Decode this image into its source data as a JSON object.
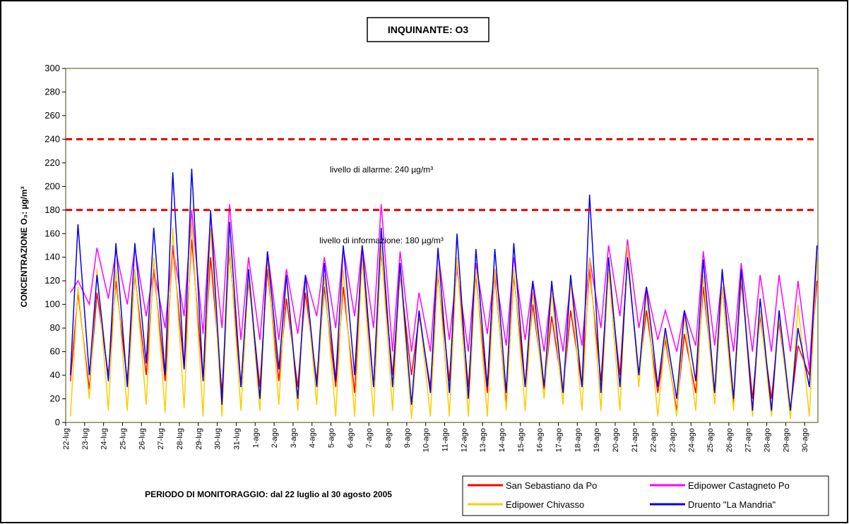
{
  "chart_data": {
    "type": "line",
    "title": "INQUINANTE: O3",
    "subtitle": "PERIODO DI MONITORAGGIO: dal 22 luglio al 30 agosto 2005",
    "y_label": "CONCENTRAZIONE O₃: µg/m³",
    "ylim": [
      0,
      300
    ],
    "yticks": [
      0,
      20,
      40,
      60,
      80,
      100,
      120,
      140,
      160,
      180,
      200,
      220,
      240,
      260,
      280,
      300
    ],
    "xlim": [
      0,
      39.7
    ],
    "xticks": [
      {
        "value": 0,
        "label": "22-lug"
      },
      {
        "value": 1,
        "label": "23-lug"
      },
      {
        "value": 2,
        "label": "24-lug"
      },
      {
        "value": 3,
        "label": "25-lug"
      },
      {
        "value": 4,
        "label": "26-lug"
      },
      {
        "value": 5,
        "label": "27-lug"
      },
      {
        "value": 6,
        "label": "28-lug"
      },
      {
        "value": 7,
        "label": "29-lug"
      },
      {
        "value": 8,
        "label": "30-lug"
      },
      {
        "value": 9,
        "label": "31-lug"
      },
      {
        "value": 10,
        "label": "1-ago"
      },
      {
        "value": 11,
        "label": "2-ago"
      },
      {
        "value": 12,
        "label": "3-ago"
      },
      {
        "value": 13,
        "label": "4-ago"
      },
      {
        "value": 14,
        "label": "5-ago"
      },
      {
        "value": 15,
        "label": "6-ago"
      },
      {
        "value": 16,
        "label": "7-ago"
      },
      {
        "value": 17,
        "label": "8-ago"
      },
      {
        "value": 18,
        "label": "9-ago"
      },
      {
        "value": 19,
        "label": "10-ago"
      },
      {
        "value": 20,
        "label": "11-ago"
      },
      {
        "value": 21,
        "label": "12-ago"
      },
      {
        "value": 22,
        "label": "13-ago"
      },
      {
        "value": 23,
        "label": "14-ago"
      },
      {
        "value": 24,
        "label": "15-ago"
      },
      {
        "value": 25,
        "label": "16-ago"
      },
      {
        "value": 26,
        "label": "17-ago"
      },
      {
        "value": 27,
        "label": "18-ago"
      },
      {
        "value": 28,
        "label": "19-ago"
      },
      {
        "value": 29,
        "label": "20-ago"
      },
      {
        "value": 30,
        "label": "21-ago"
      },
      {
        "value": 31,
        "label": "22-ago"
      },
      {
        "value": 32,
        "label": "23-ago"
      },
      {
        "value": 33,
        "label": "24-ago"
      },
      {
        "value": 34,
        "label": "25-ago"
      },
      {
        "value": 35,
        "label": "26-ago"
      },
      {
        "value": 36,
        "label": "27-ago"
      },
      {
        "value": 37,
        "label": "28-ago"
      },
      {
        "value": 38,
        "label": "29-ago"
      },
      {
        "value": 39,
        "label": "30-ago"
      }
    ],
    "x": [
      0.25,
      0.65,
      1.25,
      1.65,
      2.25,
      2.65,
      3.25,
      3.65,
      4.25,
      4.65,
      5.25,
      5.65,
      6.25,
      6.65,
      7.25,
      7.65,
      8.25,
      8.65,
      9.25,
      9.65,
      10.25,
      10.65,
      11.25,
      11.65,
      12.25,
      12.65,
      13.25,
      13.65,
      14.25,
      14.65,
      15.25,
      15.65,
      16.25,
      16.65,
      17.25,
      17.65,
      18.25,
      18.65,
      19.25,
      19.65,
      20.25,
      20.65,
      21.25,
      21.65,
      22.25,
      22.65,
      23.25,
      23.65,
      24.25,
      24.65,
      25.25,
      25.65,
      26.25,
      26.65,
      27.25,
      27.65,
      28.25,
      28.65,
      29.25,
      29.65,
      30.25,
      30.65,
      31.25,
      31.65,
      32.25,
      32.65,
      33.25,
      33.65,
      34.25,
      34.65,
      35.25,
      35.65,
      36.25,
      36.65,
      37.25,
      37.65,
      38.25,
      38.65,
      39.25,
      39.65
    ],
    "thresholds": [
      {
        "value": 240,
        "label": "livello di allarme: 240 µg/m³",
        "color": "#e00000"
      },
      {
        "value": 180,
        "label": "livello di informazione: 180 µg/m³",
        "color": "#e00000"
      }
    ],
    "legend_position": "bottom-right",
    "series": [
      {
        "name": "San Sebastiano da Po",
        "color": "#ff0000",
        "values": [
          35,
          110,
          28,
          110,
          40,
          120,
          35,
          125,
          40,
          130,
          35,
          150,
          45,
          155,
          35,
          140,
          25,
          145,
          30,
          120,
          30,
          130,
          35,
          105,
          30,
          110,
          35,
          115,
          30,
          115,
          25,
          140,
          30,
          145,
          40,
          125,
          40,
          90,
          30,
          125,
          35,
          135,
          30,
          125,
          25,
          125,
          15,
          125,
          30,
          100,
          28,
          90,
          25,
          95,
          30,
          130,
          35,
          130,
          40,
          140,
          40,
          95,
          25,
          70,
          10,
          75,
          25,
          115,
          25,
          115,
          15,
          120,
          20,
          90,
          20,
          85,
          10,
          65,
          40,
          120
        ]
      },
      {
        "name": "Edipower Castagneto Po",
        "color": "#ff00ff",
        "values": [
          110,
          120,
          100,
          148,
          105,
          145,
          100,
          148,
          90,
          130,
          80,
          150,
          90,
          180,
          75,
          175,
          80,
          185,
          70,
          140,
          70,
          145,
          70,
          130,
          75,
          125,
          90,
          140,
          80,
          148,
          90,
          150,
          80,
          185,
          60,
          145,
          60,
          110,
          60,
          145,
          70,
          130,
          60,
          135,
          75,
          130,
          65,
          140,
          70,
          120,
          60,
          115,
          60,
          120,
          65,
          140,
          80,
          150,
          90,
          155,
          80,
          115,
          70,
          95,
          60,
          95,
          65,
          145,
          65,
          125,
          60,
          135,
          60,
          125,
          60,
          125,
          60,
          120,
          45,
          150
        ]
      },
      {
        "name": "Edipower Chivasso",
        "color": "#ffcc00",
        "values": [
          5,
          115,
          20,
          130,
          10,
          130,
          10,
          130,
          15,
          140,
          8,
          165,
          12,
          170,
          5,
          165,
          5,
          150,
          10,
          125,
          10,
          140,
          15,
          125,
          10,
          125,
          15,
          125,
          5,
          130,
          5,
          140,
          5,
          150,
          10,
          130,
          3,
          95,
          5,
          130,
          5,
          140,
          5,
          130,
          5,
          130,
          10,
          130,
          10,
          110,
          20,
          110,
          15,
          120,
          10,
          140,
          10,
          130,
          10,
          150,
          30,
          110,
          5,
          75,
          5,
          90,
          10,
          125,
          15,
          115,
          10,
          125,
          5,
          95,
          5,
          90,
          3,
          100,
          5,
          140
        ]
      },
      {
        "name": "Druento \"La Mandria\"",
        "color": "#0000ee",
        "values": [
          40,
          168,
          40,
          125,
          35,
          152,
          30,
          152,
          50,
          165,
          40,
          212,
          45,
          215,
          35,
          180,
          15,
          170,
          30,
          130,
          20,
          145,
          45,
          125,
          20,
          125,
          30,
          135,
          35,
          150,
          40,
          150,
          30,
          165,
          30,
          135,
          15,
          95,
          25,
          148,
          25,
          160,
          20,
          147,
          30,
          147,
          25,
          152,
          30,
          120,
          30,
          120,
          25,
          125,
          30,
          193,
          25,
          140,
          30,
          140,
          40,
          115,
          30,
          80,
          20,
          95,
          35,
          138,
          25,
          130,
          20,
          130,
          10,
          105,
          10,
          95,
          10,
          80,
          30,
          150
        ]
      }
    ]
  }
}
